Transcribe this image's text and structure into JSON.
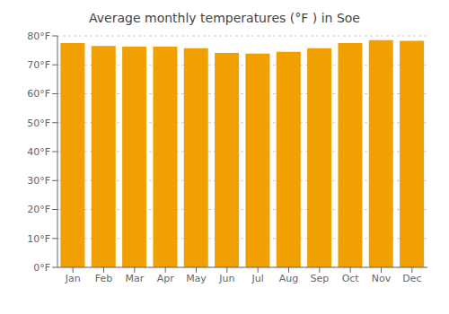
{
  "chart_data": {
    "type": "bar",
    "title": "Average monthly temperatures (°F ) in Soe",
    "categories": [
      "Jan",
      "Feb",
      "Mar",
      "Apr",
      "May",
      "Jun",
      "Jul",
      "Aug",
      "Sep",
      "Oct",
      "Nov",
      "Dec"
    ],
    "values": [
      77.5,
      76.5,
      76.3,
      76.3,
      75.7,
      74.1,
      73.9,
      74.5,
      75.7,
      77.5,
      78.5,
      78.3
    ],
    "color": "#F0A000",
    "ylim": [
      0,
      80
    ],
    "yticks": [
      {
        "value": 0,
        "label": "0°F"
      },
      {
        "value": 10,
        "label": "10°F"
      },
      {
        "value": 20,
        "label": "20°F"
      },
      {
        "value": 30,
        "label": "30°F"
      },
      {
        "value": 40,
        "label": "40°F"
      },
      {
        "value": 50,
        "label": "50°F"
      },
      {
        "value": 60,
        "label": "60°F"
      },
      {
        "value": 70,
        "label": "70°F"
      },
      {
        "value": 80,
        "label": "80°F"
      }
    ],
    "grid": true
  }
}
